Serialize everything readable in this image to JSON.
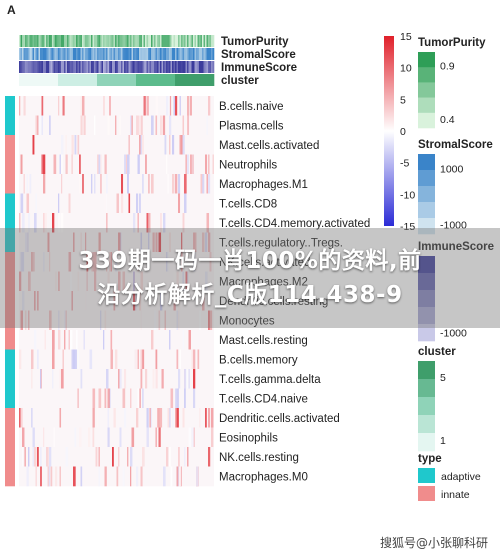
{
  "panel_label": "A",
  "overlay": {
    "line1": "339期一码一肖100%的资料,前",
    "line2": "沿分析解析_C版114.438-9"
  },
  "watermark_text": "搜狐号@小张聊科研",
  "chart_data": {
    "type": "heatmap",
    "annotation_tracks": [
      "TumorPurity",
      "StromalScore",
      "ImmuneScore",
      "cluster"
    ],
    "rows": [
      {
        "name": "B.cells.naive",
        "type": "adaptive"
      },
      {
        "name": "Plasma.cells",
        "type": "adaptive"
      },
      {
        "name": "Mast.cells.activated",
        "type": "innate"
      },
      {
        "name": "Neutrophils",
        "type": "innate"
      },
      {
        "name": "Macrophages.M1",
        "type": "innate"
      },
      {
        "name": "T.cells.CD8",
        "type": "adaptive"
      },
      {
        "name": "T.cells.CD4.memory.activated",
        "type": "adaptive"
      },
      {
        "name": "T.cells.regulatory..Tregs.",
        "type": "adaptive"
      },
      {
        "name": "NK.cells.activated",
        "type": "innate"
      },
      {
        "name": "Macrophages.M2",
        "type": "innate"
      },
      {
        "name": "Dendritic.cells.resting",
        "type": "innate"
      },
      {
        "name": "Monocytes",
        "type": "innate"
      },
      {
        "name": "Mast.cells.resting",
        "type": "innate"
      },
      {
        "name": "B.cells.memory",
        "type": "adaptive"
      },
      {
        "name": "T.cells.gamma.delta",
        "type": "adaptive"
      },
      {
        "name": "T.cells.CD4.naive",
        "type": "adaptive"
      },
      {
        "name": "Dendritic.cells.activated",
        "type": "innate"
      },
      {
        "name": "Eosinophils",
        "type": "innate"
      },
      {
        "name": "NK.cells.resting",
        "type": "innate"
      },
      {
        "name": "Macrophages.M0",
        "type": "innate"
      }
    ],
    "colorbar": {
      "ticks": [
        15,
        10,
        5,
        0,
        -5,
        -10,
        -15
      ],
      "min": -15,
      "max": 15,
      "low_color": "#2b2bd6",
      "mid_color": "#ffffff",
      "high_color": "#e0202a"
    },
    "legends": [
      {
        "title": "TumorPurity",
        "ticks": [
          "0.9",
          "0.4"
        ],
        "colors": [
          "#2e9e57",
          "#d9f2dc"
        ]
      },
      {
        "title": "StromalScore",
        "ticks": [
          "1000",
          "-1000"
        ],
        "colors": [
          "#3a84c9",
          "#cfe3ef"
        ]
      },
      {
        "title": "ImmuneScore",
        "ticks": [
          "-1000"
        ],
        "colors": [
          "#3c3c9c",
          "#c9c9e8"
        ]
      },
      {
        "title": "cluster",
        "ticks": [
          "5",
          "1"
        ],
        "colors": [
          "#3f9e6b",
          "#8fd3b8",
          "#e4f6f1"
        ]
      },
      {
        "title": "type",
        "items": [
          {
            "label": "adaptive",
            "color": "#1fc8cc"
          },
          {
            "label": "innate",
            "color": "#f08c8c"
          }
        ]
      }
    ],
    "cluster_bands": [
      1,
      2,
      3,
      4,
      5
    ],
    "colors": {
      "adaptive": "#1fc8cc",
      "innate": "#f08c8c"
    }
  }
}
